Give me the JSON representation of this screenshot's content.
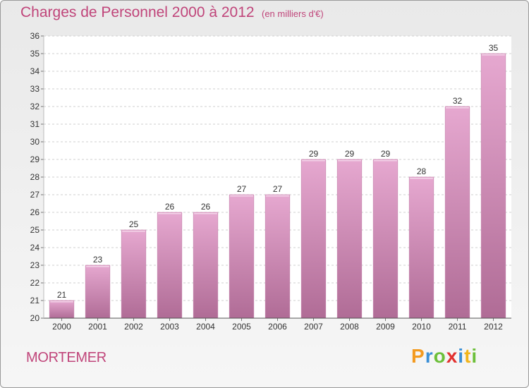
{
  "header": {
    "title": "Charges de Personnel 2000 à 2012",
    "unit": "(en milliers d'€)"
  },
  "footer": {
    "commune": "MORTEMER",
    "logo_letters": [
      "P",
      "r",
      "o",
      "x",
      "i",
      "t",
      "i"
    ]
  },
  "colors": {
    "accent": "#c0457a",
    "bar_top": "#e6a8d0",
    "bar_bottom": "#b06c96",
    "logo": [
      "#f39a1f",
      "#3a8fd6",
      "#6cbf3a",
      "#e2312f",
      "#3a8fd6",
      "#f2b51c",
      "#6cbf3a"
    ]
  },
  "chart_data": {
    "type": "bar",
    "title": "Charges de Personnel 2000 à 2012",
    "subtitle": "(en milliers d'€)",
    "categories": [
      "2000",
      "2001",
      "2002",
      "2003",
      "2004",
      "2005",
      "2006",
      "2007",
      "2008",
      "2009",
      "2010",
      "2011",
      "2012"
    ],
    "values": [
      21,
      23,
      25,
      26,
      26,
      27,
      27,
      29,
      29,
      29,
      28,
      32,
      35
    ],
    "ylim": [
      20,
      36
    ],
    "yticks": [
      "20",
      "21",
      "22",
      "23",
      "24",
      "25",
      "26",
      "27",
      "28",
      "29",
      "30",
      "31",
      "32",
      "33",
      "34",
      "35",
      "36"
    ],
    "grid": true,
    "legend": "none"
  }
}
